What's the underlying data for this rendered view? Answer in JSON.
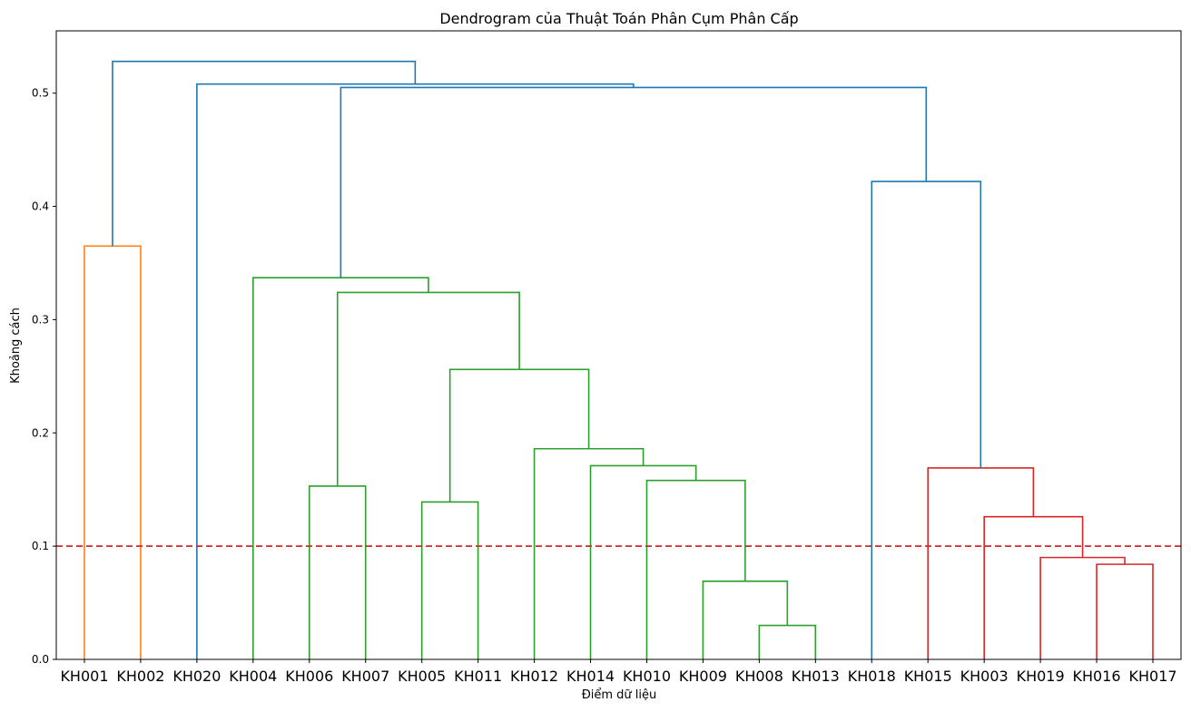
{
  "chart_data": {
    "type": "dendrogram",
    "title": "Dendrogram của Thuật Toán Phân Cụm Phân Cấp",
    "xlabel": "Điểm dữ liệu",
    "ylabel": "Khoảng cách",
    "ylim": [
      0,
      0.555
    ],
    "yticks": [
      "0.0",
      "0.1",
      "0.2",
      "0.3",
      "0.4",
      "0.5"
    ],
    "leaves": [
      "KH001",
      "KH002",
      "KH020",
      "KH004",
      "KH006",
      "KH007",
      "KH005",
      "KH011",
      "KH012",
      "KH014",
      "KH010",
      "KH009",
      "KH008",
      "KH013",
      "KH018",
      "KH015",
      "KH003",
      "KH019",
      "KH016",
      "KH017"
    ],
    "threshold": {
      "value": 0.1,
      "color": "#d62728",
      "style": "dashed"
    },
    "colors": {
      "orange": "#ff7f0e",
      "green": "#2ca02c",
      "red": "#d62728",
      "blue": "#1f77b4"
    },
    "merges": [
      {
        "left": "KH001",
        "right": "KH002",
        "height": 0.365,
        "color": "orange"
      },
      {
        "left": "KH008",
        "right": "KH013",
        "height": 0.03,
        "color": "green"
      },
      {
        "left": "KH009",
        "right": "KH008+KH013",
        "height": 0.069,
        "color": "green"
      },
      {
        "left": "KH010",
        "right": "KH009+KH008+KH013",
        "height": 0.158,
        "color": "green"
      },
      {
        "left": "KH014",
        "right": "KH010+KH009+KH008+KH013",
        "height": 0.171,
        "color": "green"
      },
      {
        "left": "KH012",
        "right": "KH014+KH010+KH009+KH008+KH013",
        "height": 0.186,
        "color": "green"
      },
      {
        "left": "KH005",
        "right": "KH011",
        "height": 0.139,
        "color": "green"
      },
      {
        "left": "KH005+KH011",
        "right": "KH012+KH014+KH010+KH009+KH008+KH013",
        "height": 0.256,
        "color": "green"
      },
      {
        "left": "KH006",
        "right": "KH007",
        "height": 0.153,
        "color": "green"
      },
      {
        "left": "KH006+KH007",
        "right": "KH005…KH013",
        "height": 0.324,
        "color": "green"
      },
      {
        "left": "KH004",
        "right": "KH006…KH013",
        "height": 0.337,
        "color": "green"
      },
      {
        "left": "KH016",
        "right": "KH017",
        "height": 0.084,
        "color": "red"
      },
      {
        "left": "KH019",
        "right": "KH016+KH017",
        "height": 0.09,
        "color": "red"
      },
      {
        "left": "KH003",
        "right": "KH019+KH016+KH017",
        "height": 0.126,
        "color": "red"
      },
      {
        "left": "KH015",
        "right": "KH003+KH019+KH016+KH017",
        "height": 0.169,
        "color": "red"
      },
      {
        "left": "KH018",
        "right": "KH015…KH017",
        "height": 0.422,
        "color": "blue"
      },
      {
        "left": "KH004…KH013",
        "right": "KH018…KH017",
        "height": 0.505,
        "color": "blue"
      },
      {
        "left": "KH020",
        "right": "KH004…KH017",
        "height": 0.508,
        "color": "blue"
      },
      {
        "left": "KH001+KH002",
        "right": "KH020…KH017",
        "height": 0.528,
        "color": "blue"
      }
    ]
  }
}
